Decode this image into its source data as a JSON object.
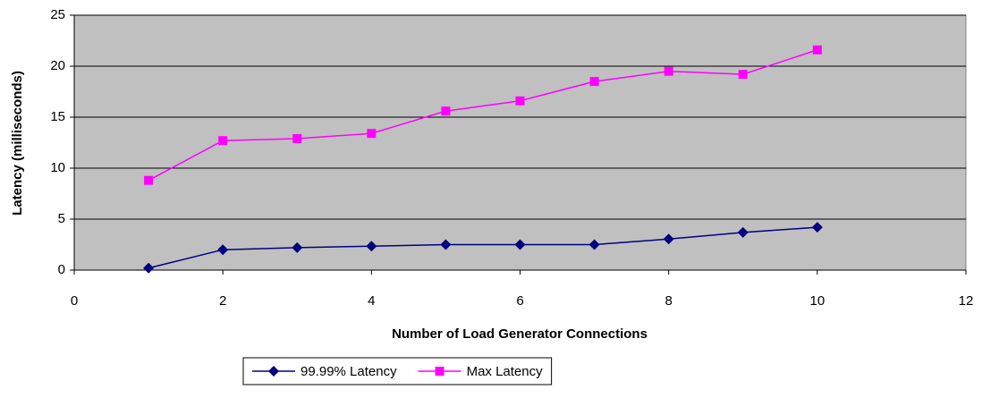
{
  "chart_data": {
    "type": "line",
    "x": [
      1,
      2,
      3,
      4,
      5,
      6,
      7,
      8,
      9,
      10
    ],
    "series": [
      {
        "name": "99.99% Latency",
        "color": "#000080",
        "marker": "diamond",
        "values": [
          0.2,
          2.0,
          2.2,
          2.35,
          2.5,
          2.5,
          2.5,
          3.05,
          3.7,
          4.2
        ]
      },
      {
        "name": "Max Latency",
        "color": "#ff00ff",
        "marker": "square",
        "values": [
          8.8,
          12.7,
          12.9,
          13.4,
          15.6,
          16.6,
          18.5,
          19.5,
          19.2,
          21.6
        ]
      }
    ],
    "xlabel": "Number of Load Generator Connections",
    "ylabel": "Latency (milliseconds)",
    "xlim": [
      0,
      12
    ],
    "xticks": [
      0,
      2,
      4,
      6,
      8,
      10,
      12
    ],
    "ylim": [
      0,
      25
    ],
    "yticks": [
      0,
      5,
      10,
      15,
      20,
      25
    ],
    "grid": true,
    "legend": "bottom"
  }
}
